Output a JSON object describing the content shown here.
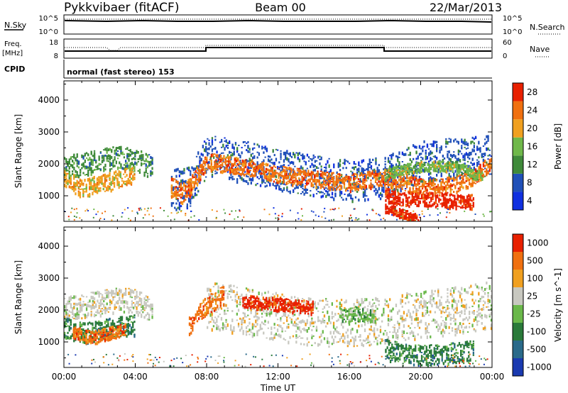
{
  "header": {
    "station": "Pykkvibaer (fitACF)",
    "beam": "Beam 00",
    "date": "22/Mar/2013"
  },
  "top_panels": {
    "nsky_label": "N.Sky",
    "nsky_ticks": [
      "10^5",
      "10^0"
    ],
    "nsearch_label": "N.Search",
    "nsearch_ticks": [
      "10^5",
      "10^0"
    ],
    "freq_label": "Freq.",
    "freq_unit": "[MHz]",
    "freq_ticks": [
      "18",
      "8"
    ],
    "nave_label": "Nave",
    "nave_ticks": [
      "60",
      "0"
    ],
    "cpid_label": "CPID",
    "cpid_text": "normal (fast stereo) 153"
  },
  "chart_data": [
    {
      "type": "heatmap",
      "name": "power",
      "ylabel": "Slant Range [km]",
      "ylim": [
        200,
        4600
      ],
      "yticks": [
        1000,
        2000,
        3000,
        4000
      ],
      "xlim": [
        0,
        24
      ],
      "xticks": [
        "00:00",
        "04:00",
        "08:00",
        "12:00",
        "16:00",
        "20:00",
        "00:00"
      ],
      "colorbar_label": "Power [dB]",
      "colorbar_ticks": [
        "4",
        "8",
        "12",
        "16",
        "20",
        "24",
        "28"
      ],
      "colors": [
        "#1030e0",
        "#2050b8",
        "#3f8a3a",
        "#6fb84a",
        "#f0a020",
        "#f07010",
        "#e82000"
      ],
      "bands": [
        {
          "t": [
            0,
            1,
            2,
            3,
            4,
            5
          ],
          "r": [
            1950,
            2000,
            2150,
            2250,
            2150,
            1900
          ],
          "width": 350,
          "level": 2
        },
        {
          "t": [
            0,
            1,
            2,
            3,
            4
          ],
          "r": [
            1600,
            1250,
            1400,
            1550,
            1700
          ],
          "width": 280,
          "level": 4
        },
        {
          "t": [
            6,
            7,
            8,
            10,
            12,
            14,
            16,
            18,
            20,
            22,
            24
          ],
          "r": [
            1200,
            1300,
            2300,
            2100,
            1850,
            1650,
            1500,
            1600,
            2100,
            2200,
            2300
          ],
          "width": 650,
          "level": 1
        },
        {
          "t": [
            7,
            8,
            10,
            12,
            14,
            16,
            18,
            19,
            20,
            21,
            22,
            23,
            24
          ],
          "r": [
            1300,
            2100,
            1950,
            1700,
            1550,
            1450,
            1600,
            1450,
            1300,
            1300,
            1400,
            1600,
            2100
          ],
          "width": 260,
          "level": 5
        },
        {
          "t": [
            18,
            19,
            20,
            22,
            23.5
          ],
          "r": [
            1700,
            1850,
            1950,
            1950,
            1600
          ],
          "width": 160,
          "level": 3
        },
        {
          "t": [
            18,
            19,
            20,
            21,
            22,
            23
          ],
          "r": [
            1050,
            900,
            950,
            900,
            850,
            850
          ],
          "width": 220,
          "level": 6
        },
        {
          "t": [
            18,
            18.5,
            19,
            19.5,
            20
          ],
          "r": [
            650,
            550,
            450,
            350,
            300
          ],
          "width": 150,
          "level": 6
        },
        {
          "t": [
            6,
            6.6,
            7.2
          ],
          "r": [
            1300,
            1100,
            1350
          ],
          "width": 300,
          "level": 5
        }
      ]
    },
    {
      "type": "heatmap",
      "name": "velocity",
      "ylabel": "Slant Range [km]",
      "ylim": [
        200,
        4600
      ],
      "yticks": [
        1000,
        2000,
        3000,
        4000
      ],
      "xlim": [
        0,
        24
      ],
      "xlabel": "Time UT",
      "xticks": [
        "00:00",
        "04:00",
        "08:00",
        "12:00",
        "16:00",
        "20:00",
        "00:00"
      ],
      "colorbar_label": "Velocity [m s^-1]",
      "colorbar_ticks": [
        "1000",
        "500",
        "100",
        "25",
        "-25",
        "-100",
        "-500",
        "-1000"
      ],
      "colors": [
        "#1a3ab0",
        "#2a6a8a",
        "#2a7a3a",
        "#6ab84a",
        "#c8c8c0",
        "#f0a020",
        "#f07010",
        "#e82000"
      ],
      "bands": [
        {
          "t": [
            0,
            1,
            2,
            3,
            4,
            5
          ],
          "r": [
            2050,
            2150,
            2250,
            2350,
            2300,
            2000
          ],
          "width": 380,
          "level": 4
        },
        {
          "t": [
            8,
            10,
            12,
            14,
            16,
            18,
            20,
            22,
            24
          ],
          "r": [
            2200,
            2000,
            1800,
            1650,
            1600,
            1700,
            1900,
            2000,
            2200
          ],
          "width": 750,
          "level": 4
        },
        {
          "t": [
            0,
            1,
            2,
            3,
            4
          ],
          "r": [
            1500,
            1300,
            1400,
            1500,
            1550
          ],
          "width": 320,
          "level": 2
        },
        {
          "t": [
            0.5,
            1.5,
            2.5,
            3.5
          ],
          "r": [
            1350,
            1150,
            1300,
            1450
          ],
          "width": 200,
          "level": 6
        },
        {
          "t": [
            7,
            8,
            9
          ],
          "r": [
            1500,
            2200,
            2500
          ],
          "width": 300,
          "level": 6
        },
        {
          "t": [
            18,
            19,
            20,
            21,
            22,
            23
          ],
          "r": [
            800,
            650,
            600,
            650,
            700,
            750
          ],
          "width": 320,
          "level": 2
        },
        {
          "t": [
            10,
            12,
            14
          ],
          "r": [
            2300,
            2200,
            2100
          ],
          "width": 200,
          "level": 7
        },
        {
          "t": [
            15.5,
            16.5,
            17.5
          ],
          "r": [
            1850,
            1900,
            1800
          ],
          "width": 220,
          "level": 3
        }
      ]
    }
  ]
}
